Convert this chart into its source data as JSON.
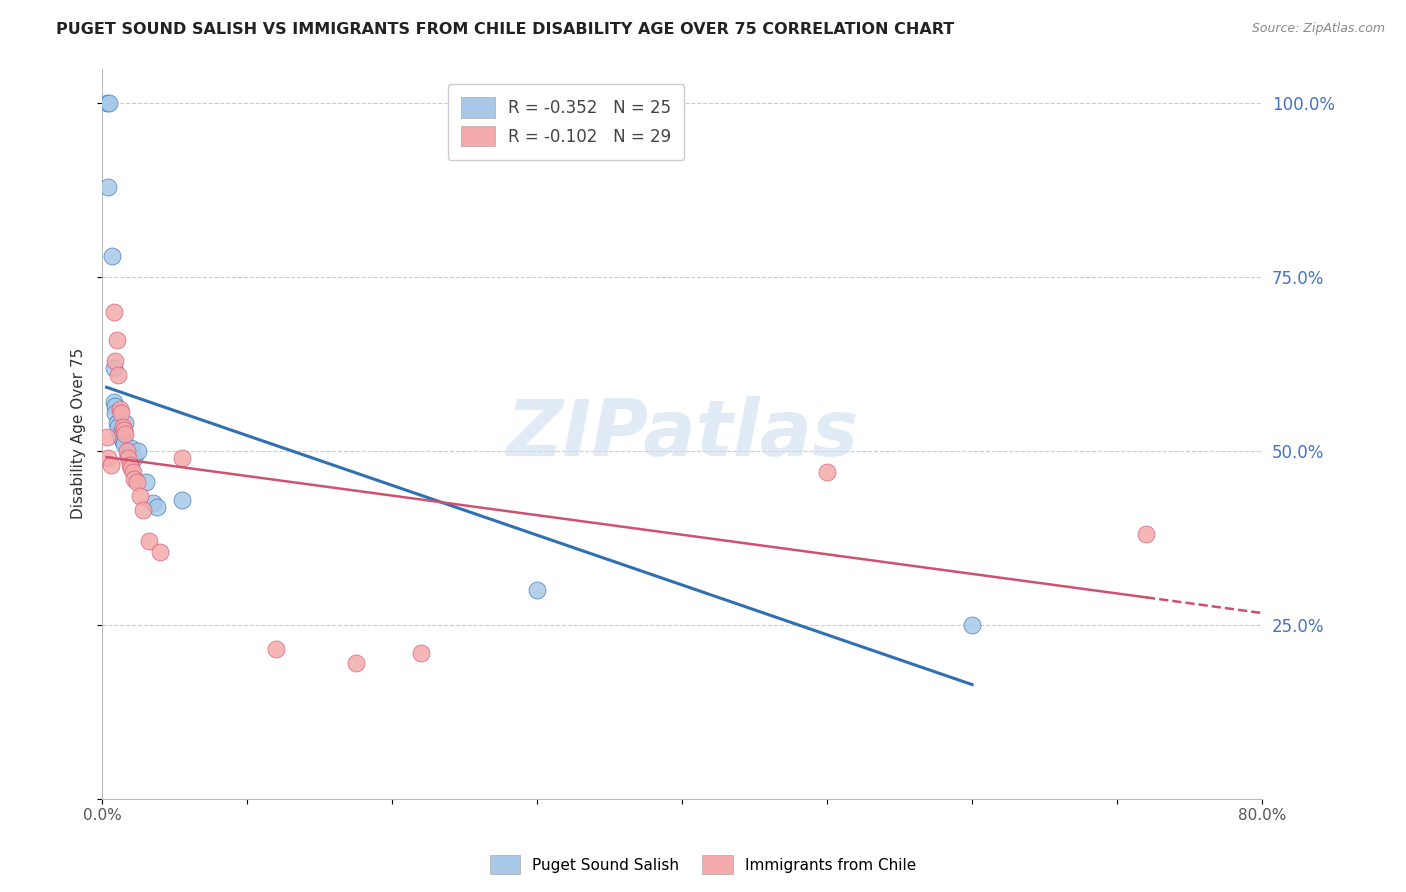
{
  "title": "PUGET SOUND SALISH VS IMMIGRANTS FROM CHILE DISABILITY AGE OVER 75 CORRELATION CHART",
  "source": "Source: ZipAtlas.com",
  "ylabel": "Disability Age Over 75",
  "xlabel": "",
  "xlim": [
    0.0,
    0.8
  ],
  "ylim": [
    0.0,
    1.05
  ],
  "x_ticks": [
    0.0,
    0.1,
    0.2,
    0.3,
    0.4,
    0.5,
    0.6,
    0.7,
    0.8
  ],
  "x_tick_labels": [
    "0.0%",
    "",
    "",
    "",
    "",
    "",
    "",
    "",
    "80.0%"
  ],
  "y_ticks": [
    0.0,
    0.25,
    0.5,
    0.75,
    1.0
  ],
  "y_tick_labels_right": [
    "",
    "25.0%",
    "50.0%",
    "75.0%",
    "100.0%"
  ],
  "legend1_label": "R = -0.352   N = 25",
  "legend2_label": "R = -0.102   N = 29",
  "legend_label1": "Puget Sound Salish",
  "legend_label2": "Immigrants from Chile",
  "blue_color": "#a8c8e8",
  "pink_color": "#f4aaaa",
  "blue_line_color": "#3070b0",
  "pink_line_color": "#d05070",
  "watermark": "ZIPatlas",
  "blue_x": [
    0.003,
    0.005,
    0.004,
    0.007,
    0.008,
    0.008,
    0.009,
    0.009,
    0.01,
    0.011,
    0.012,
    0.013,
    0.014,
    0.015,
    0.016,
    0.018,
    0.02,
    0.022,
    0.025,
    0.03,
    0.035,
    0.038,
    0.055,
    0.3,
    0.6
  ],
  "blue_y": [
    1.0,
    1.0,
    0.88,
    0.78,
    0.62,
    0.57,
    0.565,
    0.555,
    0.54,
    0.535,
    0.525,
    0.52,
    0.515,
    0.51,
    0.54,
    0.495,
    0.505,
    0.49,
    0.5,
    0.455,
    0.425,
    0.42,
    0.43,
    0.3,
    0.25
  ],
  "pink_x": [
    0.003,
    0.004,
    0.006,
    0.008,
    0.009,
    0.01,
    0.011,
    0.012,
    0.013,
    0.014,
    0.015,
    0.016,
    0.017,
    0.018,
    0.019,
    0.02,
    0.021,
    0.022,
    0.024,
    0.026,
    0.028,
    0.032,
    0.04,
    0.055,
    0.12,
    0.175,
    0.22,
    0.5,
    0.72
  ],
  "pink_y": [
    0.52,
    0.49,
    0.48,
    0.7,
    0.63,
    0.66,
    0.61,
    0.56,
    0.555,
    0.535,
    0.53,
    0.525,
    0.5,
    0.49,
    0.48,
    0.475,
    0.47,
    0.46,
    0.455,
    0.435,
    0.415,
    0.37,
    0.355,
    0.49,
    0.215,
    0.195,
    0.21,
    0.47,
    0.38
  ]
}
